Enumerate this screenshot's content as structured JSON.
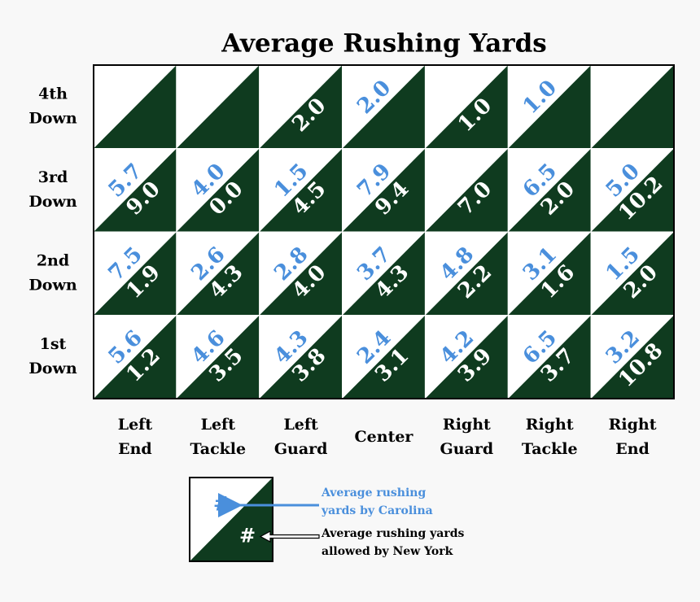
{
  "chart_data": {
    "type": "triangle-grid",
    "title": "Average Rushing Yards",
    "rows": [
      [
        "4th",
        "Down"
      ],
      [
        "3rd",
        "Down"
      ],
      [
        "2nd",
        "Down"
      ],
      [
        "1st",
        "Down"
      ]
    ],
    "categories": [
      [
        "Left",
        "End"
      ],
      [
        "Left",
        "Tackle"
      ],
      [
        "Left",
        "Guard"
      ],
      [
        "Center"
      ],
      [
        "Right",
        "Guard"
      ],
      [
        "Right",
        "Tackle"
      ],
      [
        "Right",
        "End"
      ]
    ],
    "upper_color": "#ffffff",
    "lower_color": "#0f3b1f",
    "legend_symbol": "#",
    "series": [
      {
        "name": "Average rushing yards by Carolina",
        "color": "#4a8fdc",
        "values": [
          [
            null,
            null,
            null,
            2.0,
            null,
            1.0,
            null
          ],
          [
            5.7,
            4.0,
            1.5,
            7.9,
            null,
            6.5,
            5.0
          ],
          [
            7.5,
            2.6,
            2.8,
            3.7,
            4.8,
            3.1,
            1.5
          ],
          [
            5.6,
            4.6,
            4.3,
            2.4,
            4.2,
            6.5,
            3.2
          ]
        ],
        "value_labels": [
          [
            null,
            null,
            null,
            "2.0",
            null,
            "1.0",
            null
          ],
          [
            "5.7",
            "4.0",
            "1.5",
            "7.9",
            null,
            "6.5",
            "5.0"
          ],
          [
            "7.5",
            "2.6",
            "2.8",
            "3.7",
            "4.8",
            "3.1",
            "1.5"
          ],
          [
            "5.6",
            "4.6",
            "4.3",
            "2.4",
            "4.2",
            "6.5",
            "3.2"
          ]
        ]
      },
      {
        "name": "Average rushing yards allowed by New York",
        "color": "#ffffff",
        "values": [
          [
            null,
            null,
            2.0,
            null,
            1.0,
            null,
            null
          ],
          [
            9.0,
            0.0,
            4.5,
            9.4,
            7.0,
            2.0,
            10.2
          ],
          [
            1.9,
            4.3,
            4.0,
            4.3,
            2.2,
            1.6,
            2.0
          ],
          [
            1.2,
            3.5,
            3.8,
            3.1,
            3.9,
            3.7,
            10.8
          ]
        ],
        "value_labels": [
          [
            null,
            null,
            "2.0",
            null,
            "1.0",
            null,
            null
          ],
          [
            "9.0",
            "0.0",
            "4.5",
            "9.4",
            "7.0",
            "2.0",
            "10.2"
          ],
          [
            "1.9",
            "4.3",
            "4.0",
            "4.3",
            "2.2",
            "1.6",
            "2.0"
          ],
          [
            "1.2",
            "3.5",
            "3.8",
            "3.1",
            "3.9",
            "3.7",
            "10.8"
          ]
        ]
      }
    ]
  }
}
